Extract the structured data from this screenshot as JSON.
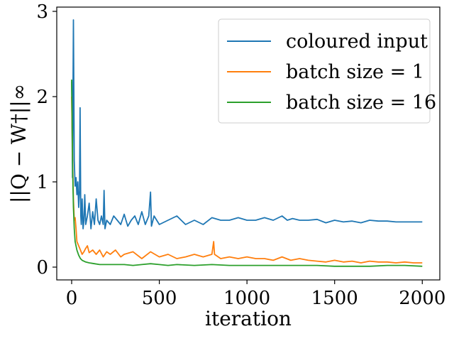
{
  "chart_data": {
    "type": "line",
    "title": "",
    "xlabel": "iteration",
    "ylabel": "||Q − W†||∞",
    "xlim": [
      -85,
      2100
    ],
    "ylim": [
      -0.15,
      3.05
    ],
    "x_ticks": [
      0,
      500,
      1000,
      1500,
      2000
    ],
    "y_ticks": [
      0,
      1,
      2,
      3
    ],
    "grid": false,
    "legend_position": "top-right",
    "series": [
      {
        "name": "coloured input",
        "color": "#1f77b4",
        "points": [
          [
            0,
            2.18
          ],
          [
            5,
            1.05
          ],
          [
            10,
            2.9
          ],
          [
            15,
            1.25
          ],
          [
            20,
            0.95
          ],
          [
            25,
            1.05
          ],
          [
            30,
            0.85
          ],
          [
            35,
            1.0
          ],
          [
            40,
            0.7
          ],
          [
            45,
            0.9
          ],
          [
            48,
            1.87
          ],
          [
            52,
            0.6
          ],
          [
            55,
            0.5
          ],
          [
            60,
            0.8
          ],
          [
            65,
            0.45
          ],
          [
            70,
            0.55
          ],
          [
            75,
            0.85
          ],
          [
            80,
            0.5
          ],
          [
            90,
            0.6
          ],
          [
            100,
            0.75
          ],
          [
            110,
            0.45
          ],
          [
            120,
            0.65
          ],
          [
            130,
            0.5
          ],
          [
            140,
            0.8
          ],
          [
            150,
            0.55
          ],
          [
            160,
            0.5
          ],
          [
            170,
            0.6
          ],
          [
            180,
            0.5
          ],
          [
            185,
            0.9
          ],
          [
            190,
            0.45
          ],
          [
            200,
            0.55
          ],
          [
            220,
            0.5
          ],
          [
            240,
            0.6
          ],
          [
            260,
            0.55
          ],
          [
            280,
            0.5
          ],
          [
            300,
            0.62
          ],
          [
            320,
            0.48
          ],
          [
            340,
            0.55
          ],
          [
            360,
            0.6
          ],
          [
            380,
            0.5
          ],
          [
            400,
            0.65
          ],
          [
            420,
            0.5
          ],
          [
            440,
            0.6
          ],
          [
            450,
            0.88
          ],
          [
            455,
            0.48
          ],
          [
            470,
            0.6
          ],
          [
            500,
            0.5
          ],
          [
            550,
            0.55
          ],
          [
            600,
            0.6
          ],
          [
            650,
            0.5
          ],
          [
            700,
            0.55
          ],
          [
            750,
            0.5
          ],
          [
            800,
            0.58
          ],
          [
            850,
            0.55
          ],
          [
            900,
            0.55
          ],
          [
            950,
            0.58
          ],
          [
            1000,
            0.55
          ],
          [
            1050,
            0.55
          ],
          [
            1100,
            0.58
          ],
          [
            1150,
            0.55
          ],
          [
            1200,
            0.6
          ],
          [
            1230,
            0.55
          ],
          [
            1260,
            0.57
          ],
          [
            1300,
            0.55
          ],
          [
            1350,
            0.55
          ],
          [
            1400,
            0.56
          ],
          [
            1450,
            0.52
          ],
          [
            1500,
            0.55
          ],
          [
            1550,
            0.53
          ],
          [
            1600,
            0.54
          ],
          [
            1650,
            0.52
          ],
          [
            1700,
            0.55
          ],
          [
            1750,
            0.54
          ],
          [
            1800,
            0.54
          ],
          [
            1850,
            0.53
          ],
          [
            1900,
            0.53
          ],
          [
            1950,
            0.53
          ],
          [
            2000,
            0.53
          ]
        ]
      },
      {
        "name": "batch size = 1",
        "color": "#ff7f0e",
        "points": [
          [
            0,
            2.0
          ],
          [
            5,
            1.3
          ],
          [
            10,
            0.8
          ],
          [
            15,
            0.55
          ],
          [
            20,
            0.58
          ],
          [
            25,
            0.45
          ],
          [
            30,
            0.3
          ],
          [
            40,
            0.25
          ],
          [
            50,
            0.2
          ],
          [
            60,
            0.15
          ],
          [
            70,
            0.18
          ],
          [
            80,
            0.22
          ],
          [
            90,
            0.25
          ],
          [
            100,
            0.17
          ],
          [
            120,
            0.2
          ],
          [
            140,
            0.15
          ],
          [
            160,
            0.2
          ],
          [
            180,
            0.12
          ],
          [
            200,
            0.18
          ],
          [
            220,
            0.15
          ],
          [
            250,
            0.2
          ],
          [
            280,
            0.12
          ],
          [
            300,
            0.15
          ],
          [
            350,
            0.18
          ],
          [
            400,
            0.1
          ],
          [
            450,
            0.18
          ],
          [
            500,
            0.12
          ],
          [
            550,
            0.15
          ],
          [
            600,
            0.1
          ],
          [
            650,
            0.12
          ],
          [
            700,
            0.15
          ],
          [
            750,
            0.12
          ],
          [
            800,
            0.15
          ],
          [
            810,
            0.3
          ],
          [
            815,
            0.15
          ],
          [
            850,
            0.1
          ],
          [
            900,
            0.12
          ],
          [
            950,
            0.1
          ],
          [
            1000,
            0.12
          ],
          [
            1050,
            0.1
          ],
          [
            1100,
            0.1
          ],
          [
            1150,
            0.08
          ],
          [
            1200,
            0.12
          ],
          [
            1250,
            0.08
          ],
          [
            1300,
            0.1
          ],
          [
            1350,
            0.08
          ],
          [
            1400,
            0.07
          ],
          [
            1450,
            0.06
          ],
          [
            1500,
            0.08
          ],
          [
            1550,
            0.06
          ],
          [
            1600,
            0.07
          ],
          [
            1650,
            0.05
          ],
          [
            1700,
            0.07
          ],
          [
            1750,
            0.06
          ],
          [
            1800,
            0.06
          ],
          [
            1850,
            0.05
          ],
          [
            1900,
            0.06
          ],
          [
            1950,
            0.05
          ],
          [
            2000,
            0.05
          ]
        ]
      },
      {
        "name": "batch size = 16",
        "color": "#2ca02c",
        "points": [
          [
            0,
            2.2
          ],
          [
            3,
            1.7
          ],
          [
            6,
            1.1
          ],
          [
            10,
            0.7
          ],
          [
            15,
            0.45
          ],
          [
            20,
            0.3
          ],
          [
            30,
            0.2
          ],
          [
            40,
            0.14
          ],
          [
            50,
            0.1
          ],
          [
            60,
            0.08
          ],
          [
            80,
            0.06
          ],
          [
            100,
            0.05
          ],
          [
            130,
            0.04
          ],
          [
            160,
            0.03
          ],
          [
            200,
            0.03
          ],
          [
            250,
            0.03
          ],
          [
            300,
            0.03
          ],
          [
            350,
            0.02
          ],
          [
            400,
            0.03
          ],
          [
            450,
            0.04
          ],
          [
            500,
            0.03
          ],
          [
            550,
            0.02
          ],
          [
            600,
            0.03
          ],
          [
            700,
            0.02
          ],
          [
            800,
            0.03
          ],
          [
            900,
            0.02
          ],
          [
            1000,
            0.02
          ],
          [
            1100,
            0.02
          ],
          [
            1200,
            0.02
          ],
          [
            1300,
            0.02
          ],
          [
            1400,
            0.02
          ],
          [
            1500,
            0.01
          ],
          [
            1600,
            0.01
          ],
          [
            1700,
            0.01
          ],
          [
            1800,
            0.02
          ],
          [
            1900,
            0.02
          ],
          [
            2000,
            0.01
          ]
        ]
      }
    ]
  }
}
